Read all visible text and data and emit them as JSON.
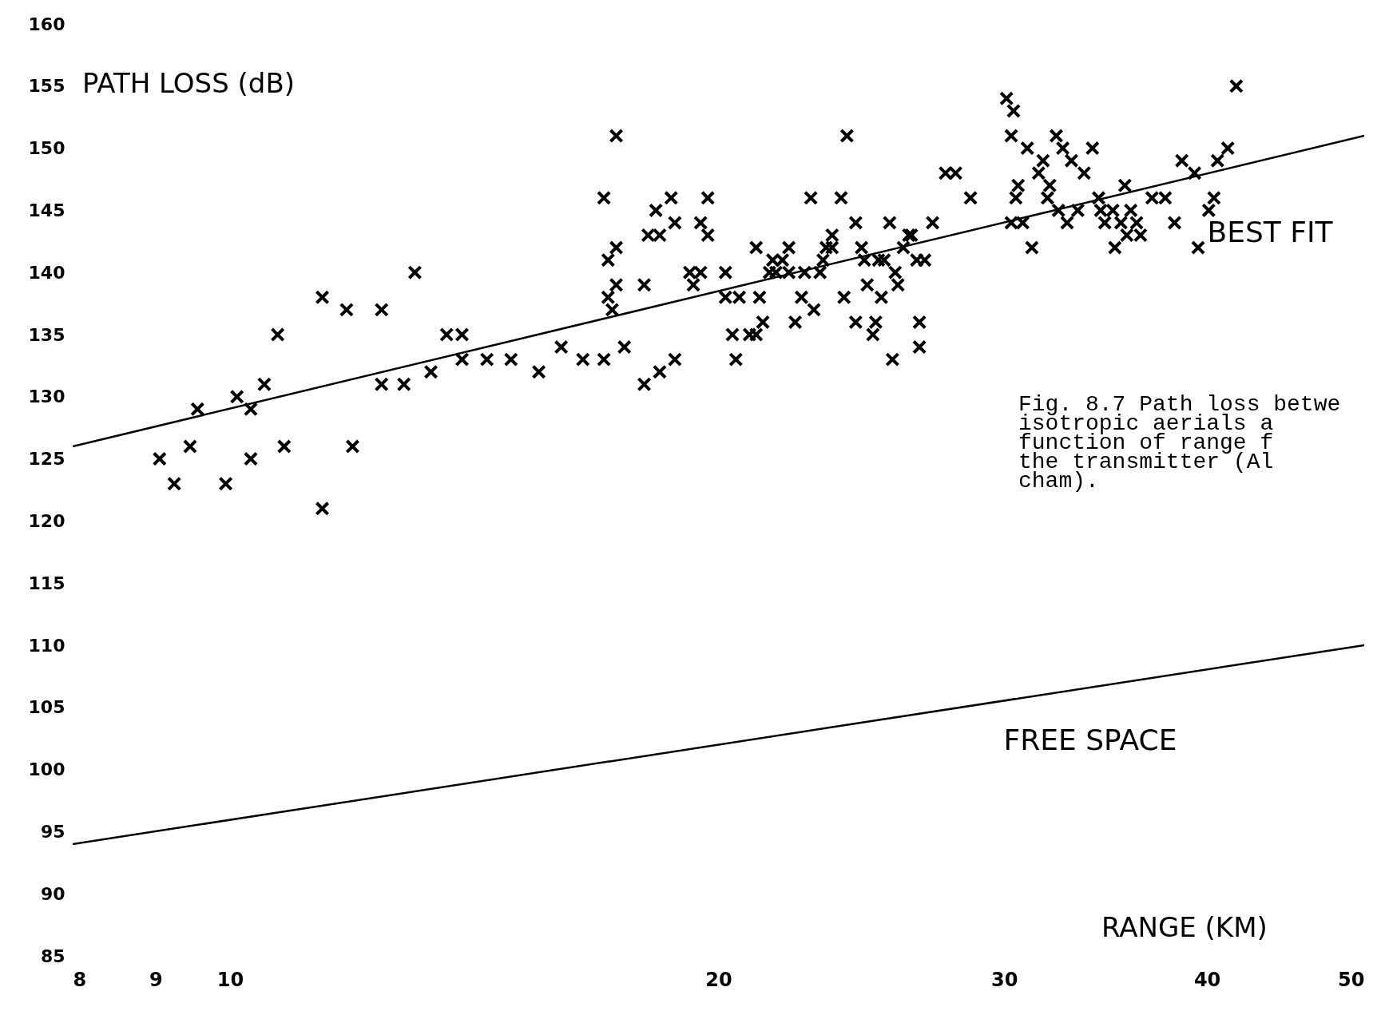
{
  "chart_data": {
    "type": "scatter",
    "xlabel": "RANGE (KM)",
    "ylabel": "PATH LOSS (dB)",
    "log": "x",
    "xlim": [
      8,
      50
    ],
    "xticks": [
      8,
      9,
      10,
      20,
      30,
      40,
      50
    ],
    "ylim": [
      85,
      160
    ],
    "yticks": [
      85,
      90,
      95,
      100,
      105,
      110,
      115,
      120,
      125,
      130,
      135,
      140,
      145,
      150,
      155,
      160
    ],
    "grid": false,
    "annotations": [
      "Fig. 8.7 Path loss betwe\n        isotropic aerials a\n        function of range f\n        the transmitter (Al\n        cham)."
    ],
    "series": [
      {
        "marker": "cross",
        "color": "#000000",
        "x": [
          9.05,
          9.24,
          9.45,
          9.55,
          9.94,
          10.1,
          10.3,
          10.3,
          10.5,
          10.7,
          10.8,
          11.4,
          11.4,
          11.8,
          11.9,
          12.4,
          12.4,
          12.8,
          13.0,
          13.3,
          13.6,
          13.9,
          13.9,
          14.4,
          14.9,
          15.5,
          16.0,
          16.5,
          17.0,
          17.0,
          17.1,
          17.1,
          17.2,
          17.3,
          17.3,
          17.3,
          17.5,
          18.0,
          18.0,
          18.1,
          18.4,
          18.4,
          18.3,
          18.7,
          18.8,
          18.8,
          19.2,
          19.5,
          19.5,
          19.7,
          19.7,
          19.3,
          20.2,
          20.2,
          20.4,
          20.5,
          20.6,
          20.9,
          21.1,
          21.1,
          21.2,
          21.3,
          21.5,
          21.6,
          21.7,
          21.9,
          22.1,
          22.1,
          22.3,
          22.5,
          22.6,
          22.8,
          22.9,
          23.1,
          23.2,
          23.3,
          23.5,
          23.5,
          23.8,
          23.9,
          24.0,
          24.3,
          24.3,
          24.5,
          24.6,
          24.7,
          24.9,
          25.0,
          25.1,
          25.2,
          25.3,
          25.5,
          25.6,
          25.7,
          25.8,
          26.0,
          26.2,
          26.3,
          26.5,
          26.6,
          26.6,
          26.8,
          27.1,
          27.6,
          28.0,
          28.6,
          30.1,
          30.4,
          30.3,
          30.3,
          30.5,
          30.6,
          30.8,
          31.0,
          31.2,
          31.5,
          31.7,
          31.9,
          32.0,
          32.3,
          32.4,
          32.6,
          32.8,
          33.0,
          33.3,
          33.6,
          34.0,
          34.3,
          34.4,
          34.6,
          35.0,
          35.1,
          35.4,
          35.6,
          35.7,
          35.9,
          36.2,
          36.4,
          37.0,
          37.7,
          38.2,
          38.6,
          39.3,
          39.5,
          40.1,
          40.4,
          40.6,
          41.2,
          41.7
        ],
        "values": [
          125,
          123,
          126,
          129,
          123,
          130,
          129,
          125,
          131,
          135,
          126,
          138,
          121,
          137,
          126,
          137,
          131,
          131,
          140,
          132,
          135,
          135,
          133,
          133,
          133,
          132,
          134,
          133,
          133,
          146,
          141,
          138,
          137,
          151,
          142,
          139,
          134,
          131,
          139,
          143,
          132,
          143,
          145,
          146,
          144,
          133,
          140,
          140,
          144,
          146,
          143,
          139,
          140,
          138,
          135,
          133,
          138,
          135,
          142,
          135,
          138,
          136,
          140,
          141,
          140,
          141,
          142,
          140,
          136,
          138,
          140,
          146,
          137,
          140,
          141,
          142,
          142,
          143,
          146,
          138,
          151,
          144,
          136,
          142,
          141,
          139,
          135,
          136,
          141,
          138,
          141,
          144,
          133,
          140,
          139,
          142,
          143,
          143,
          141,
          136,
          134,
          141,
          144,
          148,
          148,
          146,
          154,
          153,
          151,
          144,
          146,
          147,
          144,
          150,
          142,
          148,
          149,
          146,
          147,
          151,
          145,
          150,
          144,
          149,
          145,
          148,
          150,
          146,
          145,
          144,
          145,
          142,
          144,
          147,
          143,
          145,
          144,
          143,
          146,
          146,
          144,
          149,
          148,
          142,
          145,
          146,
          149,
          150,
          155
        ]
      },
      {
        "type": "line",
        "name": "BEST FIT",
        "color": "#000000",
        "x": [
          8,
          50
        ],
        "values": [
          126,
          151
        ]
      },
      {
        "type": "line",
        "name": "FREE SPACE",
        "color": "#000000",
        "x": [
          8,
          50
        ],
        "values": [
          94,
          110
        ]
      }
    ]
  }
}
